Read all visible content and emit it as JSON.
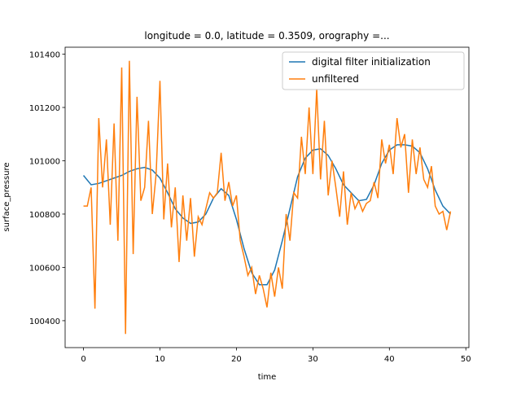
{
  "chart_data": {
    "type": "line",
    "title": "longitude = 0.0, latitude = 0.3509, orography =...",
    "x_label": "time",
    "y_label": "surface_pressure",
    "xlim": [
      -2.4,
      50.4
    ],
    "xticks": [
      0,
      10,
      20,
      30,
      40,
      50
    ],
    "ylim": [
      100299,
      101426
    ],
    "yticks": [
      100400,
      100600,
      100800,
      101000,
      101200,
      101400
    ],
    "legend": "upper right",
    "series": [
      {
        "name": "digital filter initialization",
        "color": "#1f77b4",
        "x": [
          0,
          1,
          2,
          3,
          4,
          5,
          6,
          7,
          8,
          9,
          10,
          11,
          12,
          13,
          14,
          15,
          16,
          17,
          18,
          19,
          20,
          21,
          22,
          23,
          24,
          25,
          26,
          27,
          28,
          29,
          30,
          31,
          32,
          33,
          34,
          35,
          36,
          37,
          38,
          39,
          40,
          41,
          42,
          43,
          44,
          45,
          46,
          47,
          48
        ],
        "values": [
          100945,
          100910,
          100915,
          100925,
          100935,
          100945,
          100960,
          100970,
          100975,
          100965,
          100935,
          100880,
          100820,
          100785,
          100765,
          100770,
          100800,
          100860,
          100895,
          100870,
          100780,
          100670,
          100580,
          100535,
          100535,
          100590,
          100700,
          100820,
          100940,
          101010,
          101040,
          101045,
          101020,
          100970,
          100910,
          100880,
          100850,
          100855,
          100910,
          100990,
          101040,
          101060,
          101060,
          101055,
          101030,
          100970,
          100890,
          100830,
          100800
        ]
      },
      {
        "name": "unfiltered",
        "color": "#ff7f0e",
        "x": [
          0,
          0.5,
          1,
          1.5,
          2,
          2.5,
          3,
          3.5,
          4,
          4.5,
          5,
          5.5,
          6,
          6.5,
          7,
          7.5,
          8,
          8.5,
          9,
          9.5,
          10,
          10.5,
          11,
          11.5,
          12,
          12.5,
          13,
          13.5,
          14,
          14.5,
          15,
          15.5,
          16,
          16.5,
          17,
          17.5,
          18,
          18.5,
          19,
          19.5,
          20,
          20.5,
          21,
          21.5,
          22,
          22.5,
          23,
          23.5,
          24,
          24.5,
          25,
          25.5,
          26,
          26.5,
          27,
          27.5,
          28,
          28.5,
          29,
          29.5,
          30,
          30.5,
          31,
          31.5,
          32,
          32.5,
          33,
          33.5,
          34,
          34.5,
          35,
          35.5,
          36,
          36.5,
          37,
          37.5,
          38,
          38.5,
          39,
          39.5,
          40,
          40.5,
          41,
          41.5,
          42,
          42.5,
          43,
          43.5,
          44,
          44.5,
          45,
          45.5,
          46,
          46.5,
          47,
          47.5,
          48
        ],
        "values": [
          100830,
          100830,
          100900,
          100445,
          101160,
          100900,
          101080,
          100760,
          101140,
          100700,
          101350,
          100350,
          101375,
          100650,
          101240,
          100850,
          100900,
          101150,
          100800,
          100950,
          101300,
          100780,
          100990,
          100750,
          100900,
          100620,
          100870,
          100700,
          100860,
          100640,
          100790,
          100760,
          100820,
          100880,
          100860,
          100880,
          101030,
          100850,
          100920,
          100830,
          100870,
          100700,
          100640,
          100570,
          100600,
          100500,
          100570,
          100520,
          100450,
          100580,
          100490,
          100600,
          100520,
          100800,
          100700,
          100880,
          100860,
          101090,
          100950,
          101200,
          100950,
          101270,
          100930,
          101150,
          100870,
          101000,
          100900,
          100790,
          100960,
          100760,
          100880,
          100820,
          100850,
          100810,
          100840,
          100850,
          100920,
          100860,
          101080,
          100990,
          101060,
          100950,
          101160,
          101050,
          101100,
          100880,
          101080,
          100950,
          101050,
          100930,
          100900,
          100980,
          100830,
          100800,
          100810,
          100740,
          100810
        ]
      }
    ]
  }
}
